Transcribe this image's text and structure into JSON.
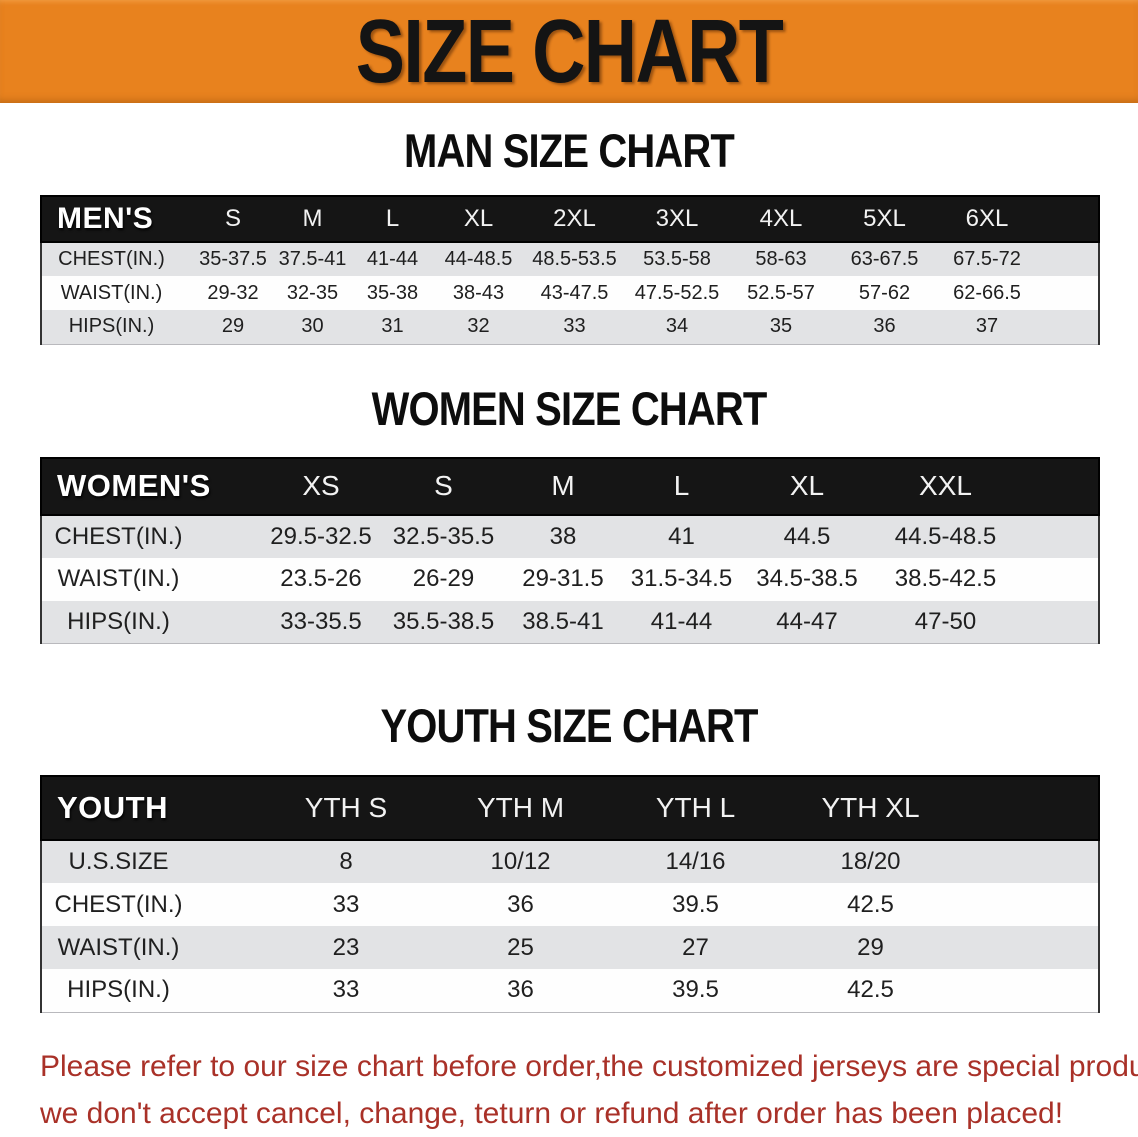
{
  "banner": {
    "title": "SIZE CHART"
  },
  "sections": [
    {
      "id": "men",
      "heading": "MAN SIZE CHART",
      "table": {
        "header_label": "MEN'S",
        "columns": [
          "S",
          "M",
          "L",
          "XL",
          "2XL",
          "3XL",
          "4XL",
          "5XL",
          "6XL"
        ],
        "rows": [
          {
            "label": "CHEST(IN.)",
            "values": [
              "35-37.5",
              "37.5-41",
              "41-44",
              "44-48.5",
              "48.5-53.5",
              "53.5-58",
              "58-63",
              "63-67.5",
              "67.5-72"
            ]
          },
          {
            "label": "WAIST(IN.)",
            "values": [
              "29-32",
              "32-35",
              "35-38",
              "38-43",
              "43-47.5",
              "47.5-52.5",
              "52.5-57",
              "57-62",
              "62-66.5"
            ]
          },
          {
            "label": "HIPS(IN.)",
            "values": [
              "29",
              "30",
              "31",
              "32",
              "33",
              "34",
              "35",
              "36",
              "37"
            ]
          }
        ]
      }
    },
    {
      "id": "women",
      "heading": "WOMEN SIZE CHART",
      "table": {
        "header_label": "WOMEN'S",
        "columns": [
          "XS",
          "S",
          "M",
          "L",
          "XL",
          "XXL"
        ],
        "rows": [
          {
            "label": "CHEST(IN.)",
            "values": [
              "29.5-32.5",
              "32.5-35.5",
              "38",
              "41",
              "44.5",
              "44.5-48.5"
            ]
          },
          {
            "label": "WAIST(IN.)",
            "values": [
              "23.5-26",
              "26-29",
              "29-31.5",
              "31.5-34.5",
              "34.5-38.5",
              "38.5-42.5"
            ]
          },
          {
            "label": "HIPS(IN.)",
            "values": [
              "33-35.5",
              "35.5-38.5",
              "38.5-41",
              "41-44",
              "44-47",
              "47-50"
            ]
          }
        ]
      }
    },
    {
      "id": "youth",
      "heading": "YOUTH SIZE CHART",
      "table": {
        "header_label": "YOUTH",
        "columns": [
          "YTH S",
          "YTH M",
          "YTH L",
          "YTH XL"
        ],
        "rows": [
          {
            "label": "U.S.SIZE",
            "values": [
              "8",
              "10/12",
              "14/16",
              "18/20"
            ]
          },
          {
            "label": "CHEST(IN.)",
            "values": [
              "33",
              "36",
              "39.5",
              "42.5"
            ]
          },
          {
            "label": "WAIST(IN.)",
            "values": [
              "23",
              "25",
              "27",
              "29"
            ]
          },
          {
            "label": "HIPS(IN.)",
            "values": [
              "33",
              "36",
              "39.5",
              "42.5"
            ]
          }
        ]
      }
    }
  ],
  "disclaimer": {
    "line1": "Please refer to our size chart before order,the customized jerseys are special products,",
    "line2": "we don't accept cancel, change, teturn or refund after order has been placed!"
  },
  "colors": {
    "banner_orange": "#E8821E",
    "header_black": "#151515",
    "row_gray": "#E2E3E5",
    "row_white": "#FEFEFE",
    "disclaimer_red": "#A93128"
  }
}
